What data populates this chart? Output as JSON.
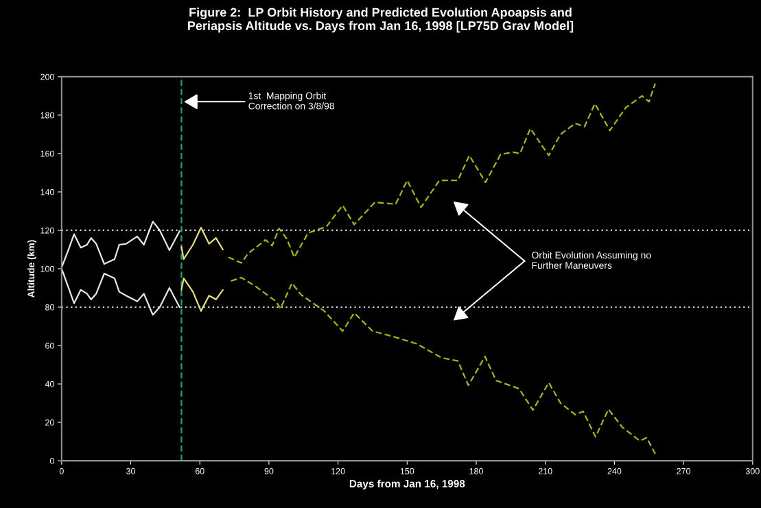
{
  "chart_data": {
    "type": "line",
    "title": "Figure 2:  LP Orbit History and Predicted Evolution Apoapsis and\nPeriapsis Altitude vs. Days from Jan 16, 1998 [LP75D Grav Model]",
    "xlabel": "Days from Jan 16, 1998",
    "ylabel": "Altitude (km)",
    "xlim": [
      0,
      300
    ],
    "xticks": [
      0,
      30,
      60,
      90,
      120,
      150,
      180,
      210,
      240,
      270,
      300
    ],
    "ylim": [
      0,
      200
    ],
    "yticks": [
      0,
      20,
      40,
      60,
      80,
      100,
      120,
      140,
      160,
      180,
      200
    ],
    "grid": false,
    "legend": false,
    "series": [
      {
        "color": "#e8e8e8",
        "line_style": "solid",
        "x": [
          0,
          3,
          5.4,
          8.3,
          11,
          12.8,
          15,
          18.5,
          23,
          25,
          28,
          32.8,
          35.7,
          39.6,
          42.6,
          46.8,
          51.2
        ],
        "values": [
          100.7,
          110,
          118,
          111,
          112.5,
          116,
          113,
          102.5,
          105,
          112.5,
          113,
          116.8,
          112.5,
          124.6,
          120,
          109.6,
          119.6
        ]
      },
      {
        "color": "#e8e8e8",
        "line_style": "solid",
        "x": [
          0,
          3,
          5.4,
          8.3,
          11,
          12.8,
          15,
          18.5,
          23,
          25,
          28,
          32.8,
          35.7,
          39.6,
          42.6,
          46.8,
          51.2
        ],
        "values": [
          100,
          90,
          82,
          89,
          87,
          84,
          87,
          97.5,
          95,
          88,
          86,
          83,
          87,
          76,
          80,
          90,
          80
        ]
      },
      {
        "color": "#e6e07a",
        "line_style": "solid",
        "x": [
          52,
          53,
          57,
          60.5,
          64,
          67,
          70
        ],
        "values": [
          111.4,
          105,
          112.5,
          121.4,
          113,
          116,
          110
        ]
      },
      {
        "color": "#e6e07a",
        "line_style": "solid",
        "x": [
          52,
          53,
          57,
          60.5,
          64,
          67,
          70
        ],
        "values": [
          89,
          95,
          88,
          78,
          86,
          84,
          89
        ]
      },
      {
        "color": "#a8b800",
        "line_style": "dashed",
        "x": [
          72.4,
          78,
          81,
          88.5,
          91.4,
          94.4,
          97.7,
          101,
          107,
          115,
          122,
          127,
          136,
          145,
          150,
          156,
          164,
          172,
          177,
          184,
          190.6,
          196,
          199,
          203.5,
          211.5,
          216.6,
          223,
          227,
          231.5,
          238,
          245,
          252,
          255,
          257.7
        ],
        "values": [
          106,
          103,
          108,
          115,
          112,
          121,
          115.7,
          106,
          118.6,
          122,
          133,
          123,
          134.6,
          133.6,
          146,
          132,
          146,
          146,
          159,
          145,
          159.6,
          160.7,
          160,
          173,
          159,
          170,
          175.7,
          174,
          186,
          172,
          184,
          190,
          187,
          196.4
        ]
      },
      {
        "color": "#a8b800",
        "line_style": "dashed",
        "x": [
          73.5,
          78,
          84,
          93,
          95,
          100,
          104,
          114,
          122,
          127,
          135,
          143,
          154,
          165,
          172,
          176.6,
          183.8,
          188.6,
          198.6,
          204.6,
          211.5,
          216.6,
          223,
          226.4,
          231.8,
          237.4,
          243.4,
          251,
          254,
          257.7
        ],
        "values": [
          93.6,
          95.4,
          91,
          83,
          79.3,
          92.5,
          86.4,
          78,
          67.5,
          77,
          67.5,
          65,
          61,
          53.6,
          52,
          39.3,
          54.3,
          41.8,
          37.5,
          26.4,
          40.7,
          30,
          24,
          25.7,
          12.5,
          26.8,
          17.5,
          10.4,
          12,
          3.6
        ]
      }
    ],
    "ref_lines": [
      {
        "axis": "y",
        "value": 120,
        "color": "#d8d8d8",
        "line_style": "dotted"
      },
      {
        "axis": "y",
        "value": 80,
        "color": "#d8d8d8",
        "line_style": "dotted"
      },
      {
        "axis": "x",
        "value": 52,
        "color": "#00b060",
        "line_style": "dashed"
      }
    ],
    "annotations": [
      "1st  Mapping Orbit\nCorrection on 3/8/98",
      "Orbit Evolution Assuming no\nFurther Maneuvers"
    ]
  }
}
